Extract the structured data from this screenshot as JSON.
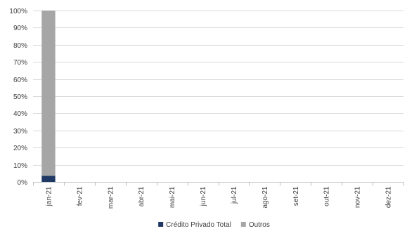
{
  "chart_data": {
    "type": "bar",
    "stacked": true,
    "categories": [
      "jan-21",
      "fev-21",
      "mar-21",
      "abr-21",
      "mai-21",
      "jun-21",
      "jul-21",
      "ago-21",
      "set-21",
      "out-21",
      "nov-21",
      "dez-21"
    ],
    "series": [
      {
        "name": "Crédito Privado Total",
        "color": "#1f3864",
        "values": [
          3.5,
          null,
          null,
          null,
          null,
          null,
          null,
          null,
          null,
          null,
          null,
          null
        ]
      },
      {
        "name": "Outros",
        "color": "#a6a6a6",
        "values": [
          96.5,
          null,
          null,
          null,
          null,
          null,
          null,
          null,
          null,
          null,
          null,
          null
        ]
      }
    ],
    "title": "",
    "xlabel": "",
    "ylabel": "",
    "ylim": [
      0,
      100
    ],
    "y_ticks": [
      "0%",
      "10%",
      "20%",
      "30%",
      "40%",
      "50%",
      "60%",
      "70%",
      "80%",
      "90%",
      "100%"
    ],
    "grid": true,
    "legend_position": "bottom"
  }
}
